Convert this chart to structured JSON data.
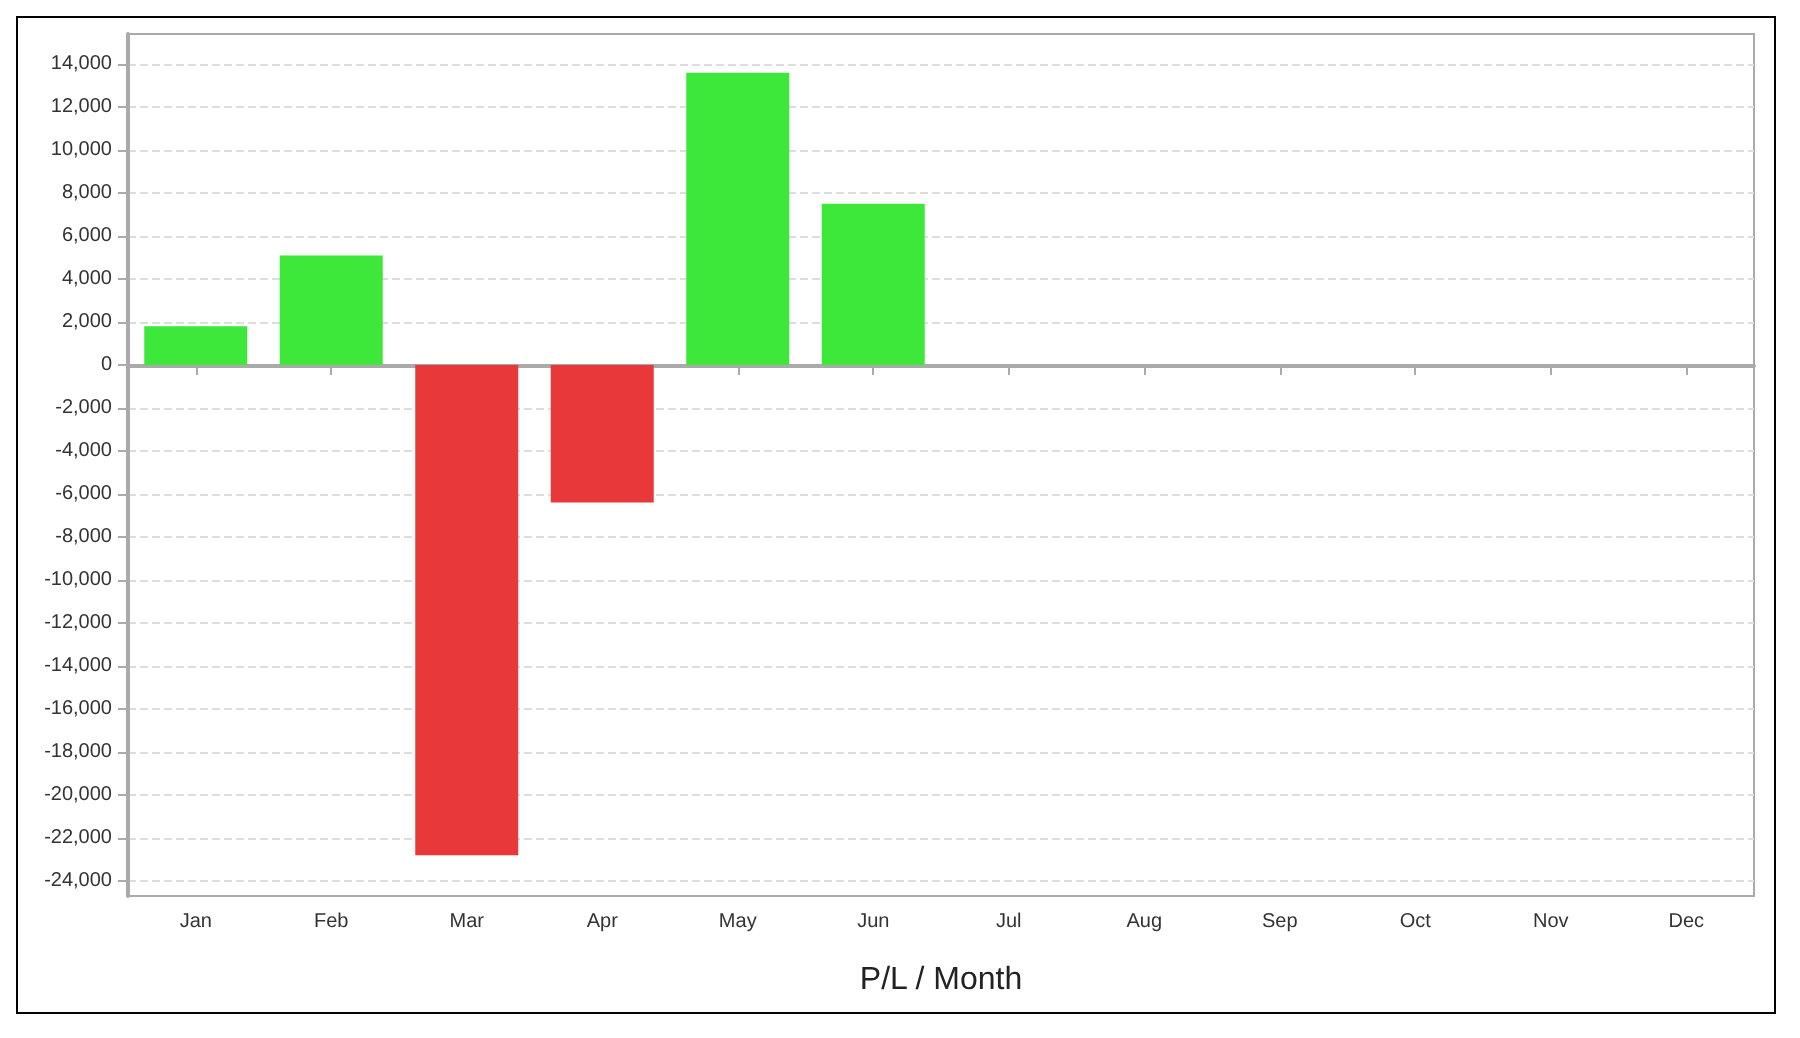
{
  "chart_data": {
    "type": "bar",
    "xlabel": "P/L / Month",
    "categories": [
      "Jan",
      "Feb",
      "Mar",
      "Apr",
      "May",
      "Jun",
      "Jul",
      "Aug",
      "Sep",
      "Oct",
      "Nov",
      "Dec"
    ],
    "values": [
      1800,
      5100,
      -22800,
      -6400,
      13600,
      7500,
      null,
      null,
      null,
      null,
      null,
      null
    ],
    "colors": [
      "#3de83a",
      "#3de83a",
      "#e8383a",
      "#e8383a",
      "#3de83a",
      "#3de83a",
      null,
      null,
      null,
      null,
      null,
      null
    ],
    "ylim": [
      -24700,
      15400
    ],
    "yticks": [
      {
        "value": -24000,
        "label": "-24,000"
      },
      {
        "value": -22000,
        "label": "-22,000"
      },
      {
        "value": -20000,
        "label": "-20,000"
      },
      {
        "value": -18000,
        "label": "-18,000"
      },
      {
        "value": -16000,
        "label": "-16,000"
      },
      {
        "value": -14000,
        "label": "-14,000"
      },
      {
        "value": -12000,
        "label": "-12,000"
      },
      {
        "value": -10000,
        "label": "-10,000"
      },
      {
        "value": -8000,
        "label": "-8,000"
      },
      {
        "value": -6000,
        "label": "-6,000"
      },
      {
        "value": -4000,
        "label": "-4,000"
      },
      {
        "value": -2000,
        "label": "-2,000"
      },
      0,
      {
        "value": 2000,
        "label": "2,000"
      },
      {
        "value": 4000,
        "label": "4,000"
      },
      {
        "value": 6000,
        "label": "6,000"
      },
      {
        "value": 8000,
        "label": "8,000"
      },
      {
        "value": 10000,
        "label": "10,000"
      },
      {
        "value": 12000,
        "label": "12,000"
      },
      {
        "value": 14000,
        "label": "14,000"
      }
    ],
    "grid": "y"
  }
}
